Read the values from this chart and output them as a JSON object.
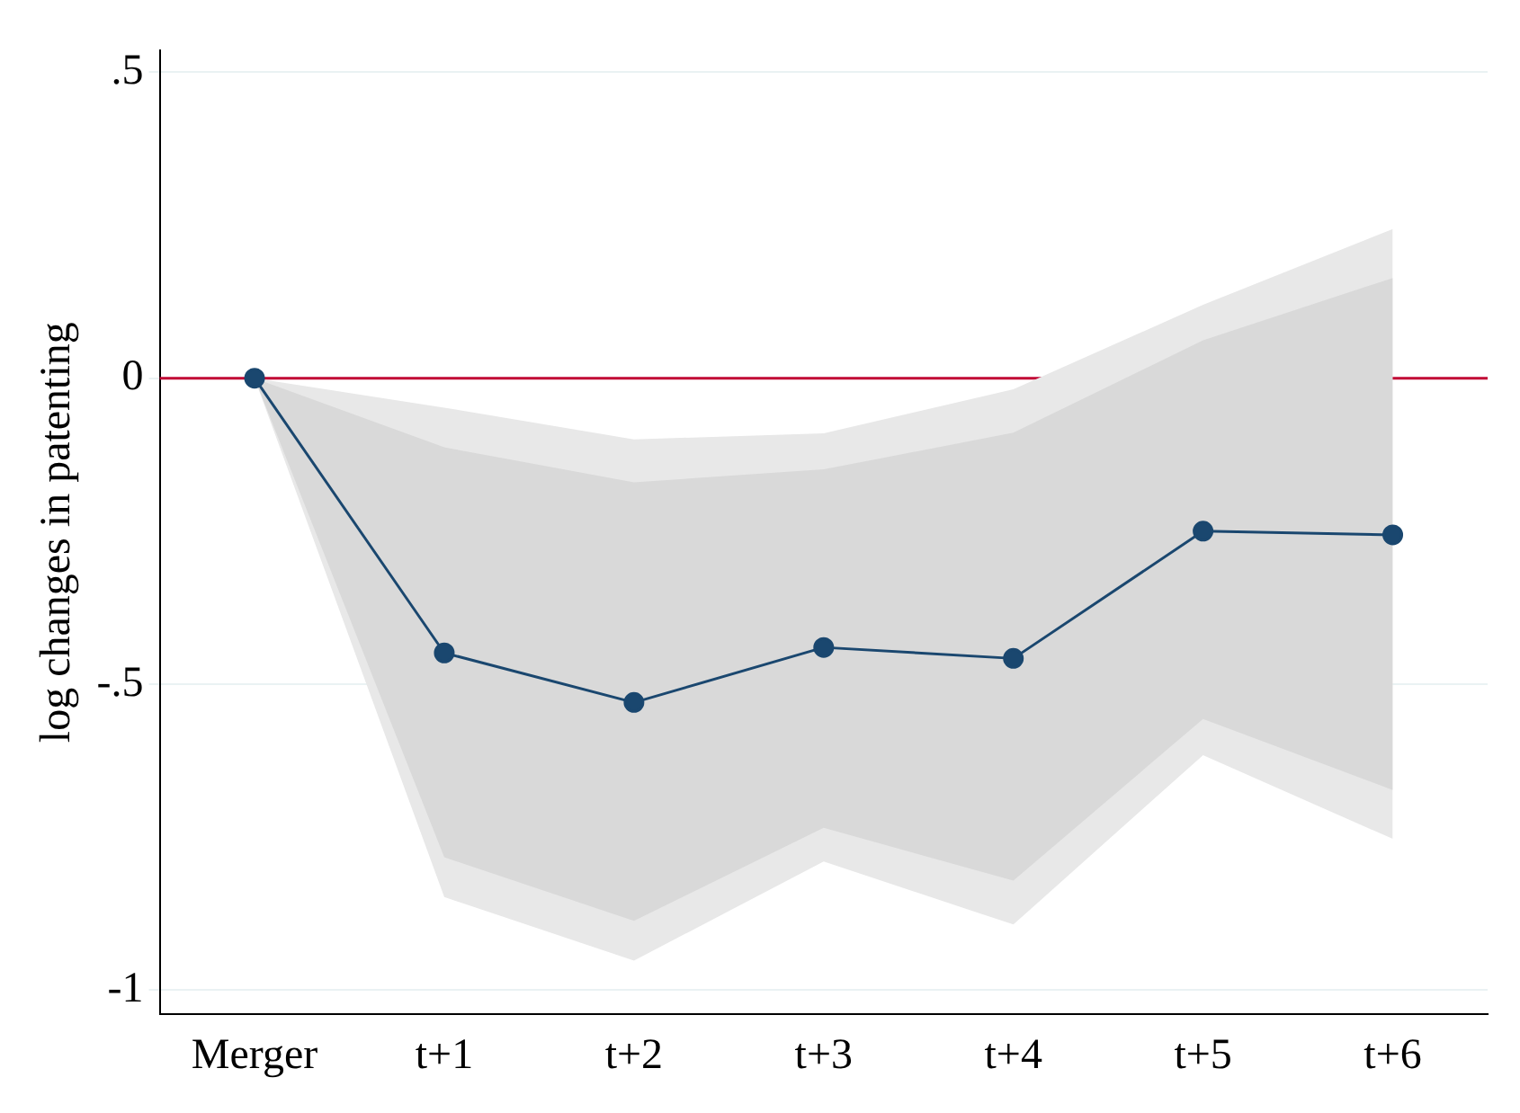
{
  "chart_data": {
    "type": "line",
    "ylabel": "log changes in patenting",
    "categories": [
      "Merger",
      "t+1",
      "t+2",
      "t+3",
      "t+4",
      "t+5",
      "t+6"
    ],
    "series": [
      {
        "color": "#1a476f",
        "values": [
          0,
          -0.449,
          -0.53,
          -0.44,
          -0.458,
          -0.25,
          -0.256
        ],
        "lower": [
          0,
          -0.848,
          -0.952,
          -0.79,
          -0.893,
          -0.616,
          -0.753
        ],
        "upper": [
          0,
          -0.048,
          -0.1,
          -0.09,
          -0.018,
          0.12,
          0.244
        ]
      },
      {
        "type": "area",
        "color": "#d9d9d9",
        "values": [
          null,
          null,
          null,
          null,
          null,
          null,
          null
        ],
        "lower": [
          0,
          -0.783,
          -0.887,
          -0.735,
          -0.821,
          -0.557,
          -0.673
        ],
        "upper": [
          0,
          -0.113,
          -0.17,
          -0.149,
          -0.089,
          0.062,
          0.164
        ]
      }
    ],
    "ylim": [
      -1.04,
      0.536
    ],
    "yticks": [
      {
        "value": 0.5,
        "label": ".5"
      },
      0,
      {
        "value": -0.5,
        "label": "-.5"
      },
      -1
    ],
    "grid": "y",
    "marker": "circle",
    "line_style": "solid",
    "legend": false,
    "ref_lines": [
      {
        "axis": "y",
        "value": 0,
        "color": "#c10534"
      }
    ]
  }
}
